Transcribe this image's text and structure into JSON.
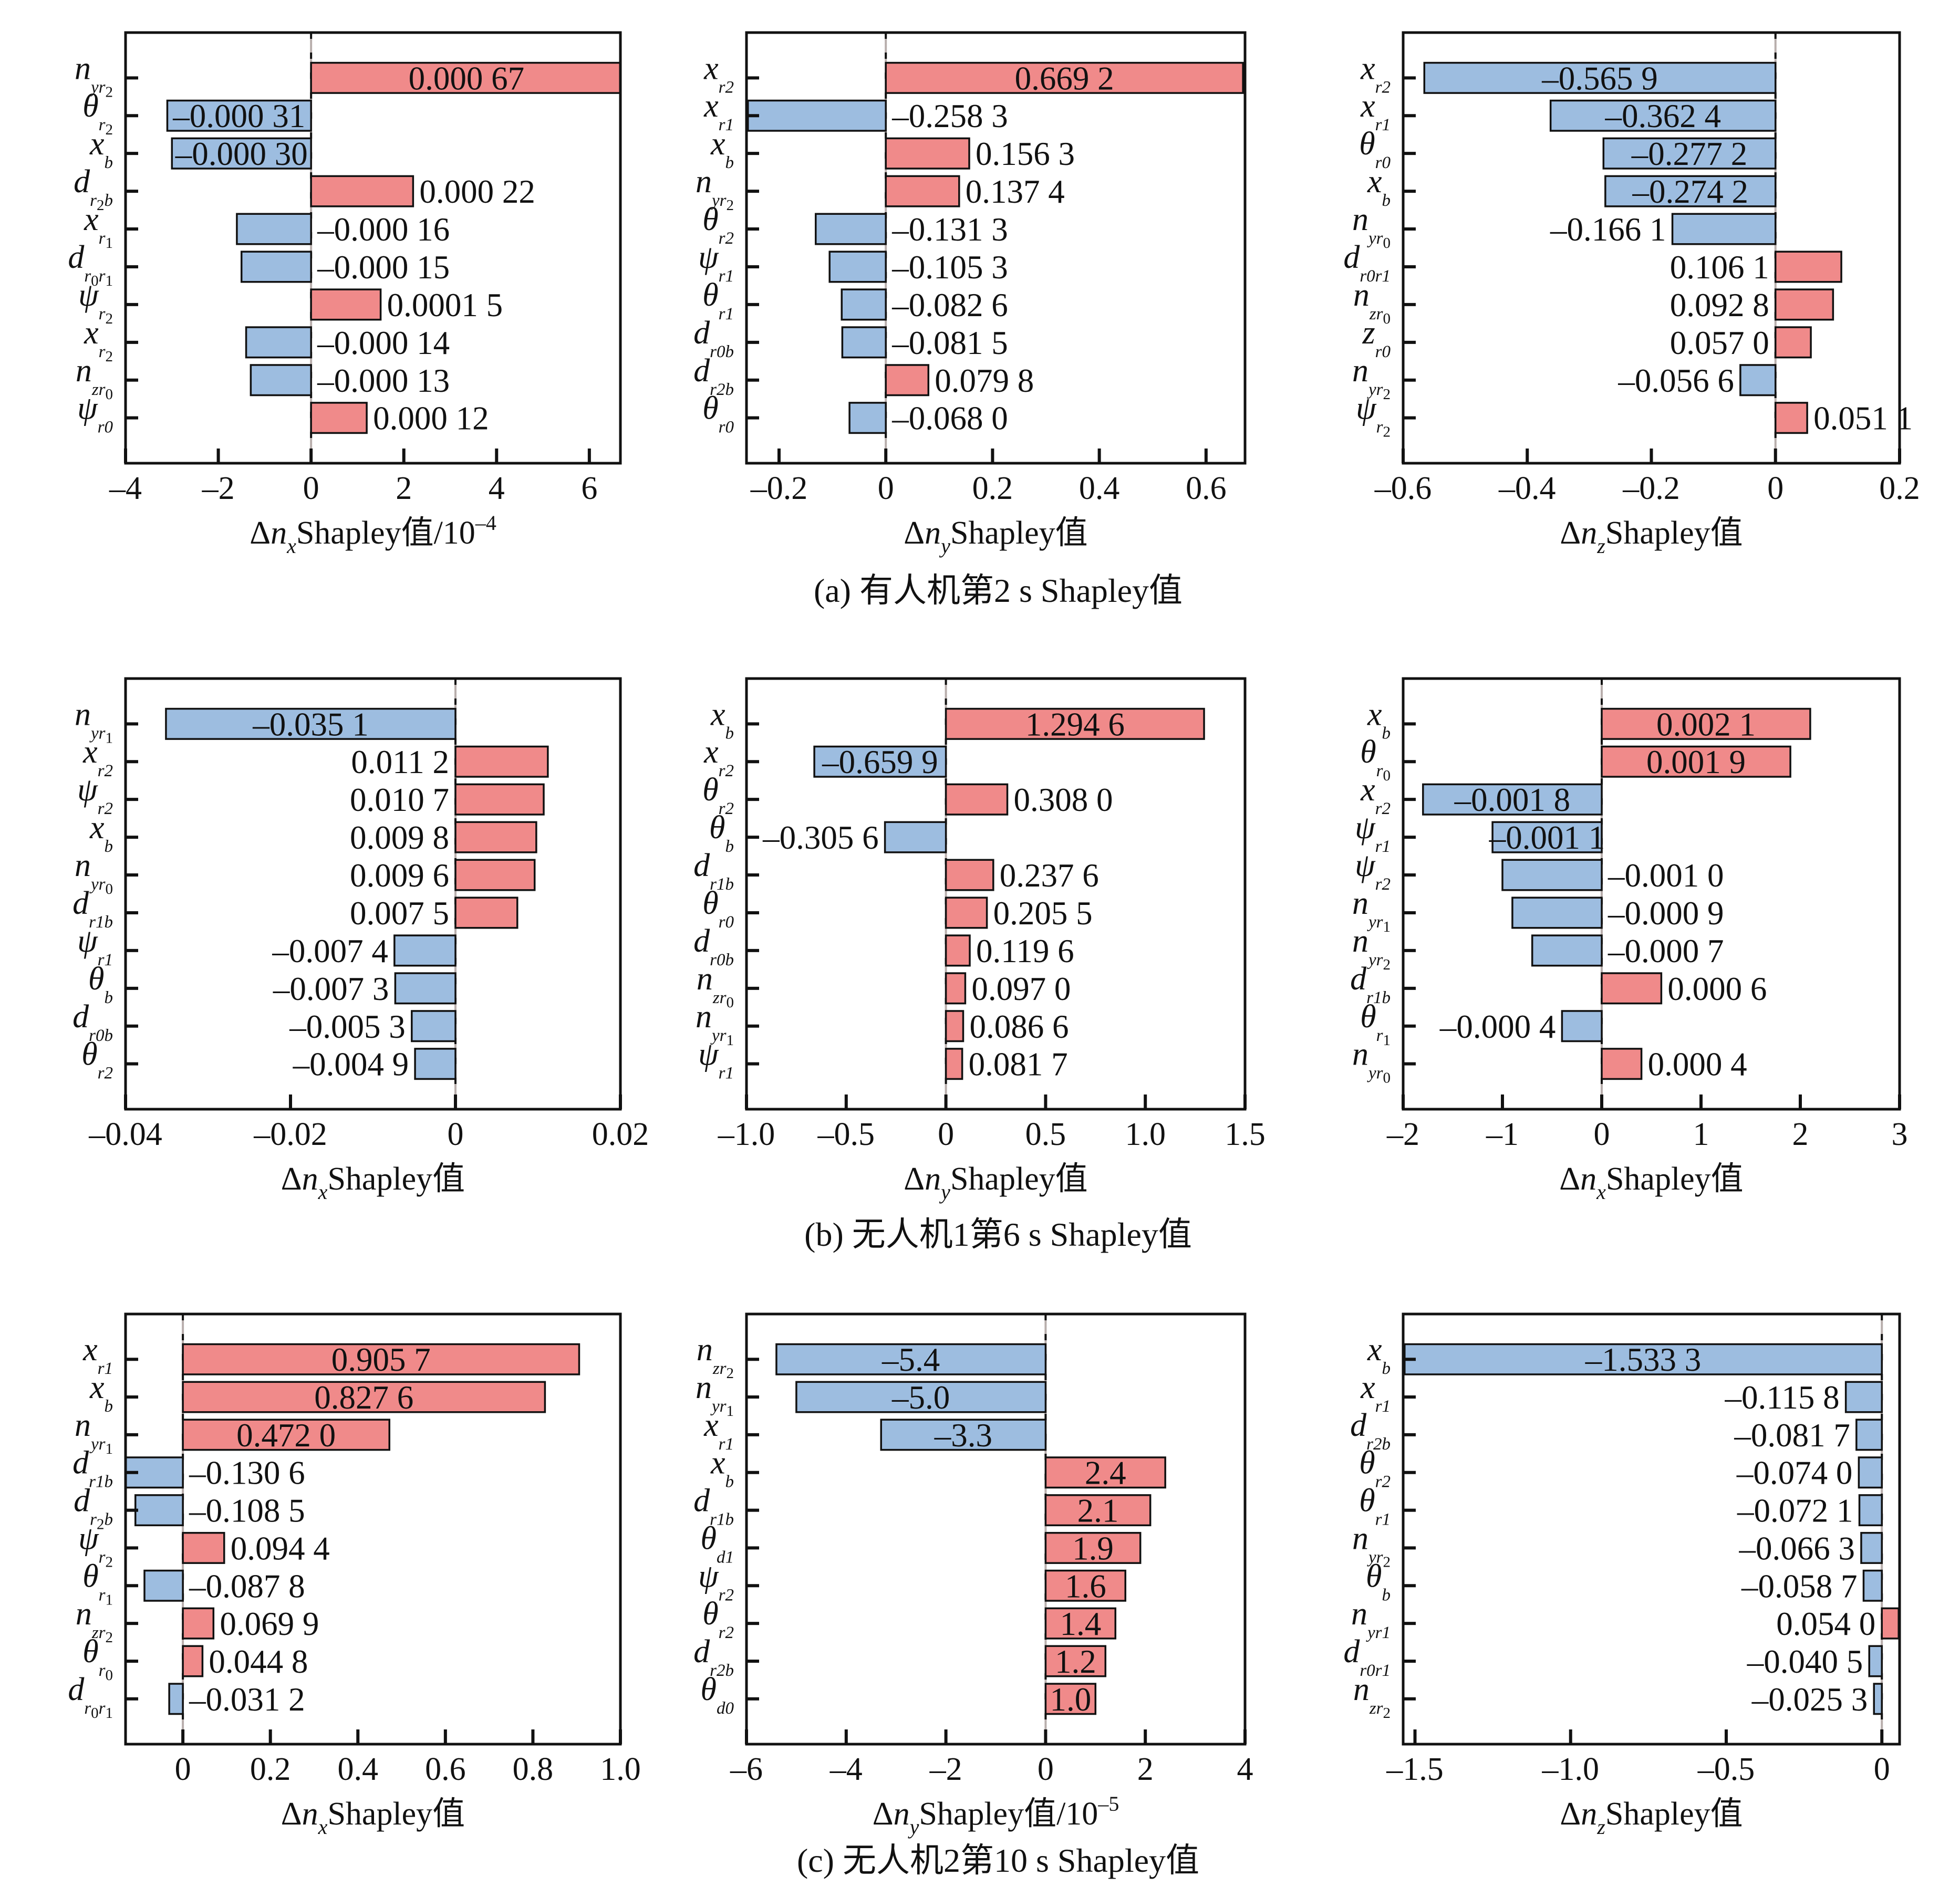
{
  "colors": {
    "positive": "#F08A8A",
    "negative": "#9DBDE0"
  },
  "captions": {
    "a": "(a) 有人机第2 s Shapley值",
    "b": "(b) 无人机1第6 s Shapley值",
    "c": "(c) 无人机2第10 s Shapley值"
  },
  "chart_data": [
    {
      "type": "bar",
      "orientation": "horizontal",
      "panel": "a",
      "categories": [
        {
          "base": "n",
          "sub": [
            "yr",
            "2"
          ]
        },
        {
          "base": "θ",
          "sub": [
            "r",
            "2"
          ]
        },
        {
          "base": "x",
          "sub": [
            "b"
          ]
        },
        {
          "base": "d",
          "sub": [
            "r",
            "2",
            "b"
          ]
        },
        {
          "base": "x",
          "sub": [
            "r",
            "1"
          ]
        },
        {
          "base": "d",
          "sub": [
            "r",
            "0",
            "r",
            "1"
          ]
        },
        {
          "base": "ψ",
          "sub": [
            "r",
            "2"
          ]
        },
        {
          "base": "x",
          "sub": [
            "r",
            "2"
          ]
        },
        {
          "base": "n",
          "sub": [
            "zr",
            "0"
          ]
        },
        {
          "base": "ψ",
          "sub": [
            "r0"
          ]
        }
      ],
      "values": [
        6.7,
        -3.1,
        -3.0,
        2.2,
        -1.6,
        -1.5,
        1.5,
        -1.4,
        -1.3,
        1.2
      ],
      "value_labels": [
        "0.000 67",
        "–0.000 31",
        "–0.000 30",
        "0.000 22",
        "–0.000 16",
        "–0.000 15",
        "0.0001 5",
        "–0.000 14",
        "–0.000 13",
        "0.000 12"
      ],
      "label_position": [
        "inside",
        "inside",
        "inside",
        "right",
        "right",
        "right",
        "right",
        "right",
        "right",
        "right"
      ],
      "xlim": [
        -4,
        6.67
      ],
      "xticks": [
        -4,
        -2,
        0,
        2,
        4,
        6
      ],
      "xticklabels": [
        "–4",
        "–2",
        "0",
        "2",
        "4",
        "6"
      ],
      "xlabel": {
        "delta": "Δ",
        "var": "n",
        "sub": "x",
        "text": "Shapley值",
        "unit": "/10",
        "exp": "–4"
      }
    },
    {
      "type": "bar",
      "orientation": "horizontal",
      "panel": "a",
      "categories": [
        {
          "base": "x",
          "sub": [
            "r2"
          ]
        },
        {
          "base": "x",
          "sub": [
            "r1"
          ]
        },
        {
          "base": "x",
          "sub": [
            "b"
          ]
        },
        {
          "base": "n",
          "sub": [
            "yr",
            "2"
          ]
        },
        {
          "base": "θ",
          "sub": [
            "r2"
          ]
        },
        {
          "base": "ψ",
          "sub": [
            "r1"
          ]
        },
        {
          "base": "θ",
          "sub": [
            "r1"
          ]
        },
        {
          "base": "d",
          "sub": [
            "r0b"
          ]
        },
        {
          "base": "d",
          "sub": [
            "r2b"
          ]
        },
        {
          "base": "θ",
          "sub": [
            "r0"
          ]
        }
      ],
      "values": [
        0.6692,
        -0.2583,
        0.1563,
        0.1374,
        -0.1313,
        -0.1053,
        -0.0826,
        -0.0815,
        0.0798,
        -0.068
      ],
      "value_labels": [
        "0.669 2",
        "–0.258 3",
        "0.156 3",
        "0.137 4",
        "–0.131 3",
        "–0.105 3",
        "–0.082 6",
        "–0.081 5",
        "0.079 8",
        "–0.068 0"
      ],
      "label_position": [
        "inside",
        "right",
        "right",
        "right",
        "right",
        "right",
        "right",
        "right",
        "right",
        "right"
      ],
      "xlim": [
        -0.261,
        0.673
      ],
      "xticks": [
        -0.2,
        0,
        0.2,
        0.4,
        0.6
      ],
      "xticklabels": [
        "–0.2",
        "0",
        "0.2",
        "0.4",
        "0.6"
      ],
      "xlabel": {
        "delta": "Δ",
        "var": "n",
        "sub": "y",
        "text": "Shapley值"
      }
    },
    {
      "type": "bar",
      "orientation": "horizontal",
      "panel": "a",
      "categories": [
        {
          "base": "x",
          "sub": [
            "r2"
          ]
        },
        {
          "base": "x",
          "sub": [
            "r1"
          ]
        },
        {
          "base": "θ",
          "sub": [
            "r0"
          ]
        },
        {
          "base": "x",
          "sub": [
            "b"
          ]
        },
        {
          "base": "n",
          "sub": [
            "yr",
            "0"
          ]
        },
        {
          "base": "d",
          "sub": [
            "r0r1"
          ]
        },
        {
          "base": "n",
          "sub": [
            "zr",
            "0"
          ]
        },
        {
          "base": "z",
          "sub": [
            "r0"
          ]
        },
        {
          "base": "n",
          "sub": [
            "yr",
            "2"
          ]
        },
        {
          "base": "ψ",
          "sub": [
            "r",
            "2"
          ]
        }
      ],
      "values": [
        -0.5659,
        -0.3624,
        -0.2772,
        -0.2742,
        -0.1661,
        0.1061,
        0.0928,
        0.057,
        -0.0566,
        0.0511
      ],
      "value_labels": [
        "–0.565 9",
        "–0.362 4",
        "–0.277 2",
        "–0.274 2",
        "–0.166 1",
        "0.106 1",
        "0.092 8",
        "0.057 0",
        "–0.056 6",
        "0.051 1"
      ],
      "label_position": [
        "inside",
        "inside",
        "inside",
        "inside",
        "left",
        "left",
        "left",
        "left",
        "left",
        "right"
      ],
      "xlim": [
        -0.6,
        0.2
      ],
      "xticks": [
        -0.6,
        -0.4,
        -0.2,
        0,
        0.2
      ],
      "xticklabels": [
        "–0.6",
        "–0.4",
        "–0.2",
        "0",
        "0.2"
      ],
      "xlabel": {
        "delta": "Δ",
        "var": "n",
        "sub": "z",
        "text": "Shapley值"
      }
    },
    {
      "type": "bar",
      "orientation": "horizontal",
      "panel": "b",
      "categories": [
        {
          "base": "n",
          "sub": [
            "yr",
            "1"
          ]
        },
        {
          "base": "x",
          "sub": [
            "r2"
          ]
        },
        {
          "base": "ψ",
          "sub": [
            "r2"
          ]
        },
        {
          "base": "x",
          "sub": [
            "b"
          ]
        },
        {
          "base": "n",
          "sub": [
            "yr",
            "0"
          ]
        },
        {
          "base": "d",
          "sub": [
            "r1b"
          ]
        },
        {
          "base": "ψ",
          "sub": [
            "r1"
          ]
        },
        {
          "base": "θ",
          "sub": [
            "b"
          ]
        },
        {
          "base": "d",
          "sub": [
            "r0b"
          ]
        },
        {
          "base": "θ",
          "sub": [
            "r2"
          ]
        }
      ],
      "values": [
        -0.0351,
        0.0112,
        0.0107,
        0.0098,
        0.0096,
        0.0075,
        -0.0074,
        -0.0073,
        -0.0053,
        -0.0049
      ],
      "value_labels": [
        "–0.035 1",
        "0.011 2",
        "0.010 7",
        "0.009 8",
        "0.009 6",
        "0.007 5",
        "–0.007 4",
        "–0.007 3",
        "–0.005 3",
        "–0.004 9"
      ],
      "label_position": [
        "inside",
        "left",
        "left",
        "left",
        "left",
        "left",
        "left",
        "left",
        "left",
        "left"
      ],
      "xlim": [
        -0.04,
        0.02
      ],
      "xticks": [
        -0.04,
        -0.02,
        0,
        0.02
      ],
      "xticklabels": [
        "–0.04",
        "–0.02",
        "0",
        "0.02"
      ],
      "xlabel": {
        "delta": "Δ",
        "var": "n",
        "sub": "x",
        "text": "Shapley值"
      }
    },
    {
      "type": "bar",
      "orientation": "horizontal",
      "panel": "b",
      "categories": [
        {
          "base": "x",
          "sub": [
            "b"
          ]
        },
        {
          "base": "x",
          "sub": [
            "r2"
          ]
        },
        {
          "base": "θ",
          "sub": [
            "r2"
          ]
        },
        {
          "base": "θ",
          "sub": [
            "b"
          ]
        },
        {
          "base": "d",
          "sub": [
            "r1b"
          ]
        },
        {
          "base": "θ",
          "sub": [
            "r0"
          ]
        },
        {
          "base": "d",
          "sub": [
            "r0b"
          ]
        },
        {
          "base": "n",
          "sub": [
            "zr",
            "0"
          ]
        },
        {
          "base": "n",
          "sub": [
            "yr",
            "1"
          ]
        },
        {
          "base": "ψ",
          "sub": [
            "r1"
          ]
        }
      ],
      "values": [
        1.2946,
        -0.6599,
        0.308,
        -0.3056,
        0.2376,
        0.2055,
        0.1196,
        0.097,
        0.0866,
        0.0817
      ],
      "value_labels": [
        "1.294 6",
        "–0.659 9",
        "0.308 0",
        "–0.305 6",
        "0.237 6",
        "0.205 5",
        "0.119 6",
        "0.097 0",
        "0.086 6",
        "0.081 7"
      ],
      "label_position": [
        "inside",
        "inside",
        "right",
        "left",
        "right",
        "right",
        "right",
        "right",
        "right",
        "right"
      ],
      "xlim": [
        -1.0,
        1.5
      ],
      "xticks": [
        -1.0,
        -0.5,
        0,
        0.5,
        1.0,
        1.5
      ],
      "xticklabels": [
        "–1.0",
        "–0.5",
        "0",
        "0.5",
        "1.0",
        "1.5"
      ],
      "xlabel": {
        "delta": "Δ",
        "var": "n",
        "sub": "y",
        "text": "Shapley值"
      }
    },
    {
      "type": "bar",
      "orientation": "horizontal",
      "panel": "b",
      "categories": [
        {
          "base": "x",
          "sub": [
            "b"
          ]
        },
        {
          "base": "θ",
          "sub": [
            "r",
            "0"
          ]
        },
        {
          "base": "x",
          "sub": [
            "r2"
          ]
        },
        {
          "base": "ψ",
          "sub": [
            "r1"
          ]
        },
        {
          "base": "ψ",
          "sub": [
            "r2"
          ]
        },
        {
          "base": "n",
          "sub": [
            "yr",
            "1"
          ]
        },
        {
          "base": "n",
          "sub": [
            "yr",
            "2"
          ]
        },
        {
          "base": "d",
          "sub": [
            "r1b"
          ]
        },
        {
          "base": "θ",
          "sub": [
            "r",
            "1"
          ]
        },
        {
          "base": "n",
          "sub": [
            "yr",
            "0"
          ]
        }
      ],
      "values": [
        2.1,
        1.9,
        -1.8,
        -1.1,
        -1.0,
        -0.9,
        -0.7,
        0.6,
        -0.4,
        0.4
      ],
      "value_labels": [
        "0.002 1",
        "0.001 9",
        "–0.001 8",
        "–0.001 1",
        "–0.001 0",
        "–0.000 9",
        "–0.000 7",
        "0.000 6",
        "–0.000 4",
        "0.000 4"
      ],
      "label_position": [
        "inside",
        "inside",
        "inside",
        "inside",
        "right",
        "right",
        "right",
        "right",
        "left",
        "right"
      ],
      "xlim": [
        -2,
        3
      ],
      "xticks": [
        -2,
        -1,
        0,
        1,
        2,
        3
      ],
      "xticklabels": [
        "–2",
        "–1",
        "0",
        "1",
        "2",
        "3"
      ],
      "xlabel": {
        "delta": "Δ",
        "var": "n",
        "sub": "x",
        "text": "Shapley值"
      }
    },
    {
      "type": "bar",
      "orientation": "horizontal",
      "panel": "c",
      "categories": [
        {
          "base": "x",
          "sub": [
            "r1"
          ]
        },
        {
          "base": "x",
          "sub": [
            "b"
          ]
        },
        {
          "base": "n",
          "sub": [
            "yr",
            "1"
          ]
        },
        {
          "base": "d",
          "sub": [
            "r1b"
          ]
        },
        {
          "base": "d",
          "sub": [
            "r",
            "2",
            "b"
          ]
        },
        {
          "base": "ψ",
          "sub": [
            "r",
            "2"
          ]
        },
        {
          "base": "θ",
          "sub": [
            "r",
            "1"
          ]
        },
        {
          "base": "n",
          "sub": [
            "zr",
            "2"
          ]
        },
        {
          "base": "θ",
          "sub": [
            "r",
            "0"
          ]
        },
        {
          "base": "d",
          "sub": [
            "r",
            "0",
            "r",
            "1"
          ]
        }
      ],
      "values": [
        0.9057,
        0.8276,
        0.472,
        -0.1306,
        -0.1085,
        0.0944,
        -0.0878,
        0.0699,
        0.0448,
        -0.0312
      ],
      "value_labels": [
        "0.905 7",
        "0.827 6",
        "0.472 0",
        "–0.130 6",
        "–0.108 5",
        "0.094 4",
        "–0.087 8",
        "0.069 9",
        "0.044 8",
        "–0.031 2"
      ],
      "label_position": [
        "inside",
        "inside",
        "inside",
        "right",
        "right",
        "right",
        "right",
        "right",
        "right",
        "right"
      ],
      "xlim": [
        -0.131,
        1.0
      ],
      "xticks": [
        0,
        0.2,
        0.4,
        0.6,
        0.8,
        1.0
      ],
      "xticklabels": [
        "0",
        "0.2",
        "0.4",
        "0.6",
        "0.8",
        "1.0"
      ],
      "xlabel": {
        "delta": "Δ",
        "var": "n",
        "sub": "x",
        "text": "Shapley值"
      }
    },
    {
      "type": "bar",
      "orientation": "horizontal",
      "panel": "c",
      "categories": [
        {
          "base": "n",
          "sub": [
            "zr",
            "2"
          ]
        },
        {
          "base": "n",
          "sub": [
            "yr",
            "1"
          ]
        },
        {
          "base": "x",
          "sub": [
            "r1"
          ]
        },
        {
          "base": "x",
          "sub": [
            "b"
          ]
        },
        {
          "base": "d",
          "sub": [
            "r1b"
          ]
        },
        {
          "base": "θ",
          "sub": [
            "d1"
          ]
        },
        {
          "base": "ψ",
          "sub": [
            "r2"
          ]
        },
        {
          "base": "θ",
          "sub": [
            "r2"
          ]
        },
        {
          "base": "d",
          "sub": [
            "r2b"
          ]
        },
        {
          "base": "θ",
          "sub": [
            "d0"
          ]
        }
      ],
      "values": [
        -5.4,
        -5.0,
        -3.3,
        2.4,
        2.1,
        1.9,
        1.6,
        1.4,
        1.2,
        1.0
      ],
      "value_labels": [
        "–5.4",
        "–5.0",
        "–3.3",
        "2.4",
        "2.1",
        "1.9",
        "1.6",
        "1.4",
        "1.2",
        "1.0"
      ],
      "label_position": [
        "inside",
        "inside",
        "inside",
        "inside",
        "inside",
        "inside",
        "inside",
        "inside",
        "inside",
        "inside"
      ],
      "xlim": [
        -6,
        4
      ],
      "xticks": [
        -6,
        -4,
        -2,
        0,
        2,
        4
      ],
      "xticklabels": [
        "–6",
        "–4",
        "–2",
        "0",
        "2",
        "4"
      ],
      "xlabel": {
        "delta": "Δ",
        "var": "n",
        "sub": "y",
        "text": "Shapley值",
        "unit": "/10",
        "exp": "–5"
      }
    },
    {
      "type": "bar",
      "orientation": "horizontal",
      "panel": "c",
      "categories": [
        {
          "base": "x",
          "sub": [
            "b"
          ]
        },
        {
          "base": "x",
          "sub": [
            "r1"
          ]
        },
        {
          "base": "d",
          "sub": [
            "r2b"
          ]
        },
        {
          "base": "θ",
          "sub": [
            "r2"
          ]
        },
        {
          "base": "θ",
          "sub": [
            "r1"
          ]
        },
        {
          "base": "n",
          "sub": [
            "yr",
            "2"
          ]
        },
        {
          "base": "θ",
          "sub": [
            "b"
          ]
        },
        {
          "base": "n",
          "sub": [
            "yr1"
          ]
        },
        {
          "base": "d",
          "sub": [
            "r0r1"
          ]
        },
        {
          "base": "n",
          "sub": [
            "zr",
            "2"
          ]
        }
      ],
      "values": [
        -1.5333,
        -0.1158,
        -0.0817,
        -0.074,
        -0.0721,
        -0.0663,
        -0.0587,
        0.054,
        -0.0405,
        -0.0253
      ],
      "value_labels": [
        "–1.533 3",
        "–0.115 8",
        "–0.081 7",
        "–0.074 0",
        "–0.072 1",
        "–0.066 3",
        "–0.058 7",
        "0.054 0",
        "–0.040 5",
        "–0.025 3"
      ],
      "label_position": [
        "inside",
        "left",
        "left",
        "left",
        "left",
        "left",
        "left",
        "left",
        "left",
        "left"
      ],
      "xlim": [
        -1.538,
        0.057
      ],
      "xticks": [
        -1.5,
        -1.0,
        -0.5,
        0
      ],
      "xticklabels": [
        "–1.5",
        "–1.0",
        "–0.5",
        "0"
      ],
      "xlabel": {
        "delta": "Δ",
        "var": "n",
        "sub": "z",
        "text": "Shapley值"
      }
    }
  ]
}
